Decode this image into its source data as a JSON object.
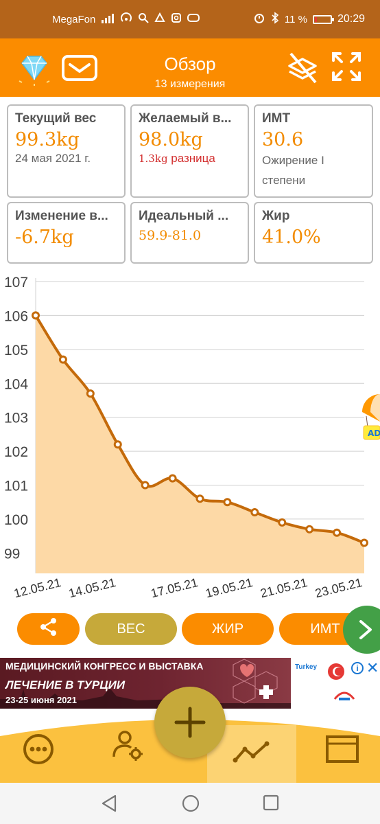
{
  "status_bar": {
    "carrier": "MegaFon",
    "battery": "11 %",
    "battery_level": 0.11,
    "time": "20:29",
    "signal_icon": "signal-icon",
    "alarm_icon": "alarm-icon",
    "bluetooth_icon": "bluetooth-icon"
  },
  "header": {
    "title": "Обзор",
    "subtitle": "13 измерения",
    "premium_icon": "diamond-icon",
    "mail_icon": "mail-icon",
    "layers_off_icon": "layers-off-icon",
    "fullscreen_icon": "fullscreen-icon",
    "accent": "#fb8c00"
  },
  "cards": {
    "current": {
      "label": "Текущий вес",
      "value": "99.3kg",
      "note": "24 мая 2021 г."
    },
    "target": {
      "label": "Желаемый в...",
      "value": "98.0kg",
      "diff_value": "1.3kg",
      "diff_word": "разница"
    },
    "bmi": {
      "label": "ИМТ",
      "value": "30.6",
      "note_line1": "Ожирение I",
      "note_line2": "степени"
    },
    "change": {
      "label": "Изменение в...",
      "value": "-6.7kg"
    },
    "ideal": {
      "label": "Идеальный ...",
      "value": "59.9-81.0"
    },
    "fat": {
      "label": "Жир",
      "value": "41.0%"
    }
  },
  "chart_data": {
    "type": "area",
    "x": [
      "12.05.21",
      "13.05.21",
      "14.05.21",
      "15.05.21",
      "16.05.21",
      "17.05.21",
      "18.05.21",
      "19.05.21",
      "20.05.21",
      "21.05.21",
      "22.05.21",
      "23.05.21",
      "24.05.21"
    ],
    "values": [
      106.0,
      104.7,
      103.7,
      102.2,
      101.0,
      101.2,
      100.6,
      100.5,
      100.2,
      99.9,
      99.7,
      99.6,
      99.3
    ],
    "x_tick_labels": [
      "12.05.21",
      "14.05.21",
      "17.05.21",
      "19.05.21",
      "21.05.21",
      "23.05.21"
    ],
    "y_ticks": [
      99,
      100,
      101,
      102,
      103,
      104,
      105,
      106,
      107
    ],
    "ylim": [
      98.4,
      107
    ],
    "grid": true,
    "line_color": "#c46a0a",
    "fill_color": "#fdd9a6"
  },
  "ad_balloon": {
    "text": "AD"
  },
  "buttons": {
    "share_icon": "share-icon",
    "weight": "ВЕС",
    "fat": "ЖИР",
    "bmi": "ИМТ",
    "next_icon": "chevron-right-icon"
  },
  "ad_banner": {
    "line1": "МЕДИЦИНСКИЙ КОНГРЕСС И ВЫСТАВКА",
    "line2": "ЛЕЧЕНИЕ В ТУРЦИИ",
    "line3": "23-25 июня 2021",
    "brand": "Turkey",
    "info": "i",
    "close": "✕"
  },
  "bottom_nav": {
    "more_icon": "more-icon",
    "profile_icon": "user-settings-icon",
    "add_icon": "plus-icon",
    "chart_icon": "line-chart-icon",
    "list_icon": "list-view-icon"
  },
  "system_nav": {
    "back_icon": "back-icon",
    "home_icon": "home-icon",
    "recents_icon": "recents-icon"
  }
}
